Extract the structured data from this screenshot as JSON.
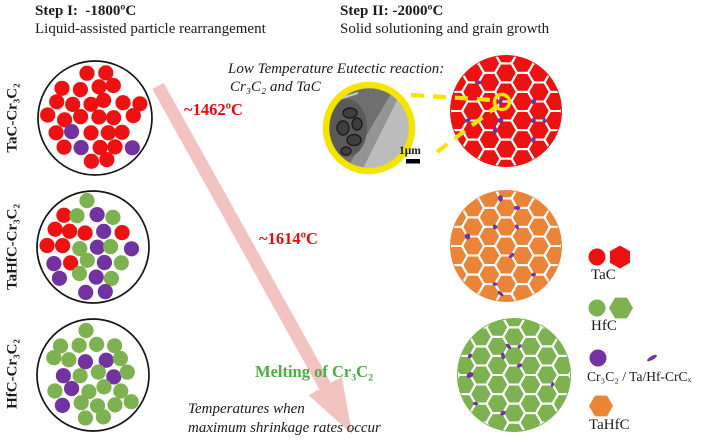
{
  "header": {
    "step1_title": "Step I:  -1800ºC",
    "step1_subtitle": "Liquid-assisted particle rearrangement",
    "step2_title": "Step II: -2000ºC",
    "step2_subtitle": "Solid solutioning and grain growth"
  },
  "rows": [
    {
      "label": "TaC-Cr₃C₂"
    },
    {
      "label": "TaHfC-Cr₃C₂"
    },
    {
      "label": "HfC-Cr₃C₂"
    }
  ],
  "annotations": {
    "eutectic_line1": "Low Temperature Eutectic reaction:",
    "eutectic_line2": "Cr₃C₂ and TaC",
    "temp_eutectic": "~1462ºC",
    "temp_melting": "~1614ºC",
    "melting_label": "Melting of Cr₃C₂",
    "caption_line1": "Temperatures when",
    "caption_line2": "maximum shrinkage rates occur",
    "scale_bar_label": "1μm"
  },
  "legend": [
    {
      "label": "TaC",
      "color_key": "tac_red",
      "shapes": [
        "circle",
        "hex-pointy"
      ]
    },
    {
      "label": "HfC",
      "color_key": "hfc_green",
      "shapes": [
        "circle",
        "hex-flat"
      ]
    },
    {
      "label": "Cr₃C₂ / Ta/Hf-CrCₓ",
      "color_key": "cr3c2_purple",
      "shapes": [
        "circle",
        "sliver"
      ]
    },
    {
      "label": "TaHfC",
      "color_key": "tahfc_orange",
      "shapes": [
        "hex-flat"
      ]
    }
  ],
  "colors": {
    "tac_red": "#ee1111",
    "hfc_green": "#7cb350",
    "cr3c2_purple": "#7233a1",
    "tahfc_orange": "#ec8438",
    "highlight_yellow": "#f5e400",
    "temp_red": "#e60c0c",
    "melting_green": "#4cae45",
    "arrow_pink": "#f3c3c1",
    "outline_black": "#161616",
    "grain_boundary_white": "#ffffff"
  },
  "micrographs": {
    "step1": [
      {
        "name": "tac-cr3c2-step1",
        "type": "dots",
        "palette": [
          [
            "tac_red",
            0.88
          ],
          [
            "cr3c2_purple",
            1.0
          ]
        ]
      },
      {
        "name": "tahfc-cr3c2-step1",
        "type": "dots",
        "palette": [
          [
            "tac_red",
            0.42
          ],
          [
            "hfc_green",
            0.82
          ],
          [
            "cr3c2_purple",
            1.0
          ]
        ]
      },
      {
        "name": "hfc-cr3c2-step1",
        "type": "dots",
        "palette": [
          [
            "hfc_green",
            0.86
          ],
          [
            "cr3c2_purple",
            1.0
          ]
        ]
      }
    ],
    "step2": [
      {
        "name": "tac-cr3c2-step2",
        "type": "hex",
        "fill_key": "tac_red",
        "accent_key": "cr3c2_purple"
      },
      {
        "name": "tahfc-cr3c2-step2",
        "type": "hex",
        "fill_key": "tahfc_orange",
        "accent_key": "cr3c2_purple"
      },
      {
        "name": "hfc-cr3c2-step2",
        "type": "hex",
        "fill_key": "hfc_green",
        "accent_key": "cr3c2_purple"
      }
    ]
  }
}
